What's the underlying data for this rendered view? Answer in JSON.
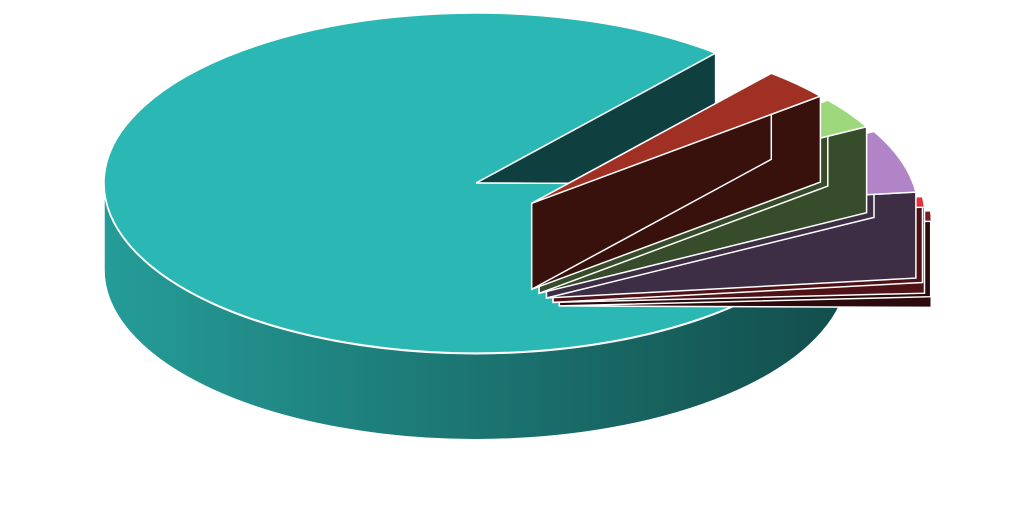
{
  "chart_data": {
    "type": "pie",
    "style": "3d-exploded",
    "title": "",
    "legend": "none",
    "data_labels": "none",
    "slices": [
      {
        "value": 86,
        "color": "#2bb7b3",
        "exploded": false
      },
      {
        "value": 3,
        "color": "#a03024",
        "exploded": true
      },
      {
        "value": 3,
        "color": "#9dd87c",
        "exploded": true
      },
      {
        "value": 6,
        "color": "#b084c6",
        "exploded": true
      },
      {
        "value": 1,
        "color": "#e3323e",
        "exploded": true
      },
      {
        "value": 1,
        "color": "#7a1a22",
        "exploded": true
      }
    ]
  }
}
